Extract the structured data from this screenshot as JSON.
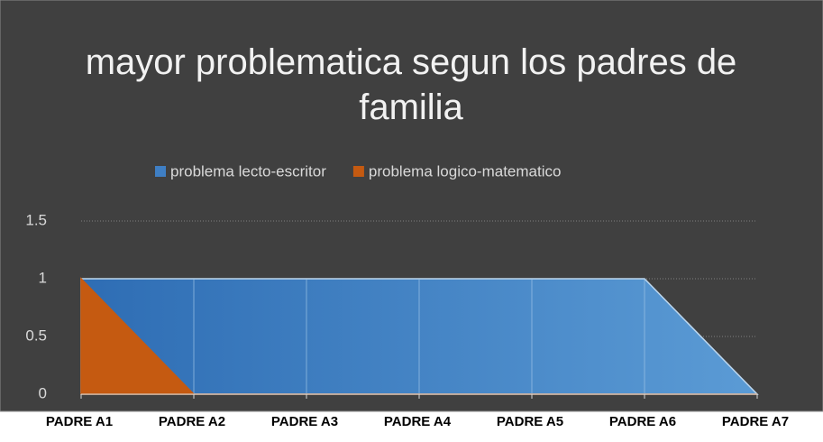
{
  "chart_data": {
    "type": "area",
    "title": "mayor problematica segun los padres de familia",
    "categories": [
      "PADRE A1",
      "PADRE A2",
      "PADRE A3",
      "PADRE A4",
      "PADRE A5",
      "PADRE A6",
      "PADRE A7"
    ],
    "series": [
      {
        "name": "problema lecto-escritor",
        "color": "#3f7fc4",
        "values": [
          1,
          1,
          1,
          1,
          1,
          1,
          0
        ]
      },
      {
        "name": "problema logico-matematico",
        "color": "#c55a11",
        "values": [
          1,
          0,
          0,
          0,
          0,
          0,
          0
        ]
      }
    ],
    "ylim": [
      0,
      1.5
    ],
    "yticks": [
      0,
      0.5,
      1,
      1.5
    ],
    "grid": true,
    "legend": "top"
  }
}
